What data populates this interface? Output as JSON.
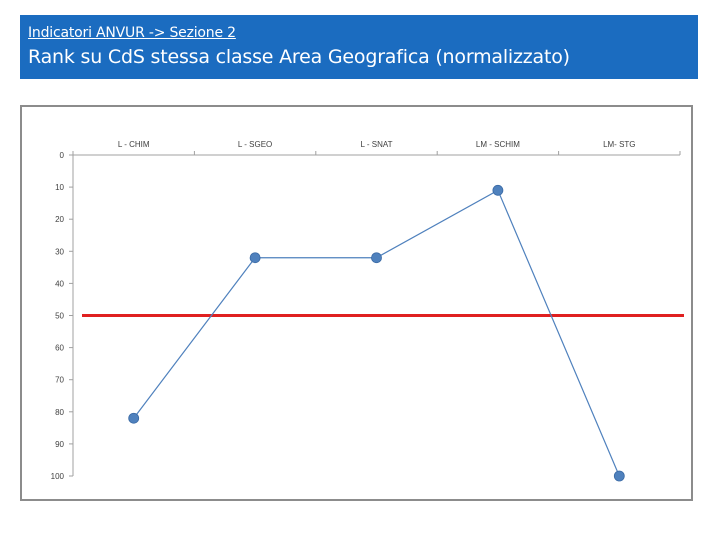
{
  "header": {
    "section": "Indicatori ANVUR -> Sezione 2",
    "title": "Rank su CdS stessa classe Area Geografica (normalizzato)"
  },
  "colors": {
    "header_bg": "#1b6cc0",
    "series_line": "#4f81bd",
    "marker": "#4f81bd",
    "reference_line": "#e02020",
    "axis": "#a0a0a0"
  },
  "chart_data": {
    "type": "line",
    "categories": [
      "L - CHIM",
      "L - SGEO",
      "L - SNAT",
      "LM - SCHIM",
      "LM- STG"
    ],
    "series": [
      {
        "values": [
          82,
          32,
          32,
          11,
          100
        ]
      }
    ],
    "reference_line": {
      "value": 50
    },
    "y_ticks": [
      0,
      10,
      20,
      30,
      40,
      50,
      60,
      70,
      80,
      90,
      100
    ],
    "ylim": [
      0,
      100
    ],
    "y_inverted": true,
    "x_axis_position": "top",
    "grid": false,
    "legend": "none"
  }
}
